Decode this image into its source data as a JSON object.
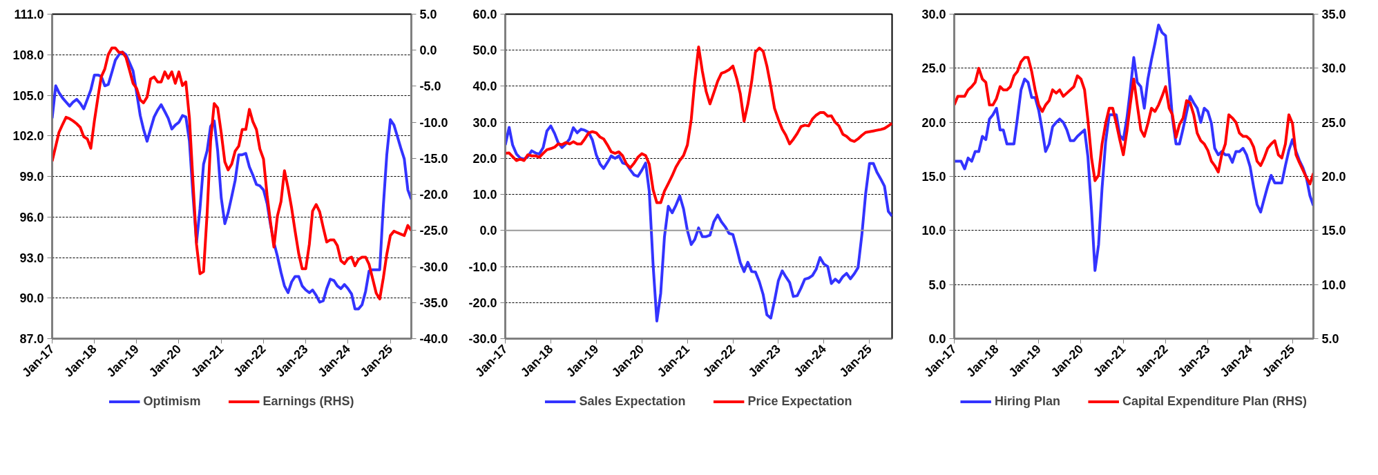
{
  "chart_data": [
    {
      "type": "line",
      "grid": "y",
      "legend": "bottom",
      "xlim": [
        "2017-01",
        "2025-07"
      ],
      "x": [
        "2017-01",
        "2017-02",
        "2017-03",
        "2017-04",
        "2017-05",
        "2017-06",
        "2017-07",
        "2017-08",
        "2017-09",
        "2017-10",
        "2017-11",
        "2017-12",
        "2018-01",
        "2018-02",
        "2018-03",
        "2018-04",
        "2018-05",
        "2018-06",
        "2018-07",
        "2018-08",
        "2018-09",
        "2018-10",
        "2018-11",
        "2018-12",
        "2019-01",
        "2019-02",
        "2019-03",
        "2019-04",
        "2019-05",
        "2019-06",
        "2019-07",
        "2019-08",
        "2019-09",
        "2019-10",
        "2019-11",
        "2019-12",
        "2020-01",
        "2020-02",
        "2020-03",
        "2020-04",
        "2020-05",
        "2020-06",
        "2020-07",
        "2020-08",
        "2020-09",
        "2020-10",
        "2020-11",
        "2020-12",
        "2021-01",
        "2021-02",
        "2021-03",
        "2021-04",
        "2021-05",
        "2021-06",
        "2021-07",
        "2021-08",
        "2021-09",
        "2021-10",
        "2021-11",
        "2021-12",
        "2022-01",
        "2022-02",
        "2022-03",
        "2022-04",
        "2022-05",
        "2022-06",
        "2022-07",
        "2022-08",
        "2022-09",
        "2022-10",
        "2022-11",
        "2022-12",
        "2023-01",
        "2023-02",
        "2023-03",
        "2023-04",
        "2023-05",
        "2023-06",
        "2023-07",
        "2023-08",
        "2023-09",
        "2023-10",
        "2023-11",
        "2023-12",
        "2024-01",
        "2024-02",
        "2024-03",
        "2024-04",
        "2024-05",
        "2024-06",
        "2024-07",
        "2024-08",
        "2024-09",
        "2024-10",
        "2024-11",
        "2024-12",
        "2025-01",
        "2025-02",
        "2025-03",
        "2025-04",
        "2025-05",
        "2025-06",
        "2025-07"
      ],
      "xticks": [
        {
          "value": "2017-01",
          "label": "Jan-17"
        },
        {
          "value": "2018-01",
          "label": "Jan-18"
        },
        {
          "value": "2019-01",
          "label": "Jan-19"
        },
        {
          "value": "2020-01",
          "label": "Jan-20"
        },
        {
          "value": "2021-01",
          "label": "Jan-21"
        },
        {
          "value": "2022-01",
          "label": "Jan-22"
        },
        {
          "value": "2023-01",
          "label": "Jan-23"
        },
        {
          "value": "2024-01",
          "label": "Jan-24"
        },
        {
          "value": "2025-01",
          "label": "Jan-25"
        }
      ],
      "ylim": [
        87,
        111
      ],
      "yticks": [
        {
          "value": 87,
          "label": "87.0"
        },
        {
          "value": 90,
          "label": "90.0"
        },
        {
          "value": 93,
          "label": "93.0"
        },
        {
          "value": 96,
          "label": "96.0"
        },
        {
          "value": 99,
          "label": "99.0"
        },
        {
          "value": 102,
          "label": "102.0"
        },
        {
          "value": 105,
          "label": "105.0"
        },
        {
          "value": 108,
          "label": "108.0"
        },
        {
          "value": 111,
          "label": "111.0"
        }
      ],
      "y2lim": [
        -40,
        5
      ],
      "y2ticks": [
        {
          "value": -40,
          "label": "-40.0"
        },
        {
          "value": -35,
          "label": "-35.0"
        },
        {
          "value": -30,
          "label": "-30.0"
        },
        {
          "value": -25,
          "label": "-25.0"
        },
        {
          "value": -20,
          "label": "-20.0"
        },
        {
          "value": -15,
          "label": "-15.0"
        },
        {
          "value": -10,
          "label": "-10.0"
        },
        {
          "value": -5,
          "label": "-5.0"
        },
        {
          "value": 0,
          "label": "0.0"
        },
        {
          "value": 5,
          "label": "5.0"
        }
      ],
      "series": [
        {
          "name": "Optimism",
          "color": "#3333ff",
          "values": [
            103.3,
            105.7,
            105.2,
            104.8,
            104.5,
            104.2,
            104.5,
            104.7,
            104.4,
            104.0,
            104.7,
            105.4,
            106.5,
            106.5,
            106.4,
            105.7,
            105.8,
            106.7,
            107.6,
            108.0,
            108.2,
            108.0,
            107.4,
            106.8,
            105.2,
            103.5,
            102.5,
            101.6,
            102.5,
            103.4,
            103.9,
            104.3,
            103.8,
            103.3,
            102.5,
            102.8,
            103.0,
            103.5,
            103.4,
            101.6,
            97.7,
            94.1,
            96.6,
            99.9,
            100.9,
            102.7,
            103.1,
            100.9,
            97.4,
            95.5,
            96.3,
            97.5,
            98.7,
            100.6,
            100.6,
            100.7,
            99.7,
            99.1,
            98.4,
            98.3,
            98.0,
            97.0,
            95.5,
            94.1,
            93.1,
            91.9,
            90.9,
            90.4,
            91.2,
            91.6,
            91.6,
            90.9,
            90.6,
            90.4,
            90.6,
            90.2,
            89.7,
            89.8,
            90.7,
            91.4,
            91.3,
            90.9,
            90.7,
            91.0,
            90.7,
            90.3,
            89.2,
            89.2,
            89.5,
            90.5,
            92.0,
            92.1,
            92.1,
            92.1,
            96.8,
            100.6,
            103.2,
            102.8,
            102.0,
            101.1,
            100.3,
            98.0,
            97.3
          ]
        },
        {
          "name": "Earnings (RHS)",
          "color": "#ff0000",
          "axis": "y2",
          "values": [
            -15.4,
            -13.3,
            -11.4,
            -10.3,
            -9.3,
            -9.5,
            -9.8,
            -10.2,
            -10.7,
            -12.0,
            -12.3,
            -13.6,
            -9.8,
            -6.5,
            -3.7,
            -2.6,
            -0.6,
            0.3,
            0.3,
            -0.3,
            -0.3,
            -1.0,
            -2.8,
            -4.6,
            -5.3,
            -6.9,
            -7.3,
            -6.5,
            -4.0,
            -3.7,
            -4.4,
            -4.4,
            -3.0,
            -3.9,
            -3.0,
            -4.6,
            -3.0,
            -4.9,
            -4.4,
            -9.4,
            -18.0,
            -26.9,
            -31.0,
            -30.7,
            -22.6,
            -12.6,
            -7.4,
            -8.0,
            -11.5,
            -15.5,
            -16.6,
            -15.8,
            -14.0,
            -13.3,
            -11.0,
            -11.0,
            -8.2,
            -9.9,
            -11.0,
            -13.7,
            -15.1,
            -20.1,
            -23.7,
            -27.3,
            -23.0,
            -21.0,
            -16.7,
            -19.1,
            -21.9,
            -25.1,
            -28.2,
            -30.3,
            -30.3,
            -26.9,
            -22.3,
            -21.4,
            -22.4,
            -24.6,
            -26.6,
            -26.3,
            -26.3,
            -27.1,
            -29.2,
            -29.6,
            -28.9,
            -28.7,
            -29.9,
            -29.0,
            -28.7,
            -28.7,
            -29.7,
            -31.7,
            -33.7,
            -34.5,
            -31.6,
            -28.3,
            -25.7,
            -25.1,
            -25.3,
            -25.5,
            -25.7,
            -24.3,
            -25.0
          ]
        }
      ]
    },
    {
      "type": "line",
      "grid": "y",
      "legend": "bottom",
      "xlim": [
        "2017-01",
        "2025-07"
      ],
      "x": [
        "2017-01",
        "2017-02",
        "2017-03",
        "2017-04",
        "2017-05",
        "2017-06",
        "2017-07",
        "2017-08",
        "2017-09",
        "2017-10",
        "2017-11",
        "2017-12",
        "2018-01",
        "2018-02",
        "2018-03",
        "2018-04",
        "2018-05",
        "2018-06",
        "2018-07",
        "2018-08",
        "2018-09",
        "2018-10",
        "2018-11",
        "2018-12",
        "2019-01",
        "2019-02",
        "2019-03",
        "2019-04",
        "2019-05",
        "2019-06",
        "2019-07",
        "2019-08",
        "2019-09",
        "2019-10",
        "2019-11",
        "2019-12",
        "2020-01",
        "2020-02",
        "2020-03",
        "2020-04",
        "2020-05",
        "2020-06",
        "2020-07",
        "2020-08",
        "2020-09",
        "2020-10",
        "2020-11",
        "2020-12",
        "2021-01",
        "2021-02",
        "2021-03",
        "2021-04",
        "2021-05",
        "2021-06",
        "2021-07",
        "2021-08",
        "2021-09",
        "2021-10",
        "2021-11",
        "2021-12",
        "2022-01",
        "2022-02",
        "2022-03",
        "2022-04",
        "2022-05",
        "2022-06",
        "2022-07",
        "2022-08",
        "2022-09",
        "2022-10",
        "2022-11",
        "2022-12",
        "2023-01",
        "2023-02",
        "2023-03",
        "2023-04",
        "2023-05",
        "2023-06",
        "2023-07",
        "2023-08",
        "2023-09",
        "2023-10",
        "2023-11",
        "2023-12",
        "2024-01",
        "2024-02",
        "2024-03",
        "2024-04",
        "2024-05",
        "2024-06",
        "2024-07",
        "2024-08",
        "2024-09",
        "2024-10",
        "2024-11",
        "2024-12",
        "2025-01",
        "2025-02",
        "2025-03",
        "2025-04",
        "2025-05",
        "2025-06",
        "2025-07"
      ],
      "xticks": [
        {
          "value": "2017-01",
          "label": "Jan-17"
        },
        {
          "value": "2018-01",
          "label": "Jan-18"
        },
        {
          "value": "2019-01",
          "label": "Jan-19"
        },
        {
          "value": "2020-01",
          "label": "Jan-20"
        },
        {
          "value": "2021-01",
          "label": "Jan-21"
        },
        {
          "value": "2022-01",
          "label": "Jan-22"
        },
        {
          "value": "2023-01",
          "label": "Jan-23"
        },
        {
          "value": "2024-01",
          "label": "Jan-24"
        },
        {
          "value": "2025-01",
          "label": "Jan-25"
        }
      ],
      "ylim": [
        -30,
        60
      ],
      "yticks": [
        {
          "value": -30,
          "label": "-30.0"
        },
        {
          "value": -20,
          "label": "-20.0"
        },
        {
          "value": -10,
          "label": "-10.0"
        },
        {
          "value": 0,
          "label": "0.0"
        },
        {
          "value": 10,
          "label": "10.0"
        },
        {
          "value": 20,
          "label": "20.0"
        },
        {
          "value": 30,
          "label": "30.0"
        },
        {
          "value": 40,
          "label": "40.0"
        },
        {
          "value": 50,
          "label": "50.0"
        },
        {
          "value": 60,
          "label": "60.0"
        }
      ],
      "ref_lines": [
        {
          "axis": "y",
          "value": 0,
          "color": "#999999",
          "line_style": "solid"
        }
      ],
      "series": [
        {
          "name": "Sales Expectation",
          "color": "#3333ff",
          "values": [
            23.7,
            28.6,
            23.7,
            21.2,
            20.1,
            19.8,
            20.5,
            22.1,
            21.5,
            21.2,
            23.0,
            27.6,
            29.0,
            26.9,
            24.4,
            23.0,
            24.0,
            25.4,
            28.5,
            27.1,
            28.1,
            27.8,
            27.2,
            25.1,
            21.0,
            18.4,
            17.2,
            18.9,
            20.7,
            20.0,
            20.7,
            18.7,
            18.4,
            16.8,
            15.4,
            15.0,
            16.7,
            18.7,
            10.9,
            -9.6,
            -25.1,
            -17.4,
            -1.8,
            6.7,
            4.9,
            7.0,
            9.6,
            6.0,
            0.0,
            -3.9,
            -2.5,
            0.7,
            -1.7,
            -1.7,
            -1.3,
            2.4,
            4.3,
            2.4,
            1.0,
            -0.8,
            -1.1,
            -5.0,
            -8.9,
            -11.4,
            -8.8,
            -11.4,
            -11.5,
            -14.2,
            -17.8,
            -23.4,
            -24.3,
            -19.5,
            -13.9,
            -11.2,
            -12.8,
            -14.4,
            -18.3,
            -18.1,
            -16.0,
            -13.5,
            -13.2,
            -12.5,
            -10.7,
            -7.5,
            -9.3,
            -10.0,
            -14.7,
            -13.5,
            -14.4,
            -12.8,
            -11.9,
            -13.4,
            -12.0,
            -10.3,
            -1.1,
            10.2,
            18.6,
            18.6,
            16.2,
            14.3,
            12.3,
            5.3,
            4.0
          ]
        },
        {
          "name": "Price Expectation",
          "color": "#ff0000",
          "values": [
            21.4,
            21.5,
            20.5,
            19.4,
            19.8,
            19.4,
            21.0,
            20.7,
            20.7,
            20.3,
            21.4,
            22.4,
            22.7,
            23.1,
            24.0,
            23.8,
            24.4,
            24.0,
            24.6,
            24.0,
            24.0,
            25.4,
            27.1,
            27.4,
            27.1,
            25.9,
            25.4,
            23.7,
            21.8,
            21.4,
            21.8,
            20.7,
            18.4,
            17.4,
            18.7,
            20.3,
            21.3,
            20.8,
            18.4,
            11.3,
            7.7,
            7.7,
            10.9,
            13.0,
            15.2,
            17.6,
            19.4,
            20.8,
            23.7,
            30.8,
            41.4,
            50.9,
            44.2,
            38.5,
            35.1,
            38.2,
            41.4,
            43.6,
            44.0,
            44.6,
            45.6,
            42.1,
            38.0,
            30.3,
            35.0,
            41.4,
            49.5,
            50.6,
            49.7,
            45.6,
            40.0,
            33.9,
            30.8,
            28.1,
            26.5,
            24.0,
            25.3,
            26.9,
            28.8,
            29.2,
            29.0,
            30.9,
            32.0,
            32.7,
            32.7,
            31.7,
            31.8,
            30.0,
            29.0,
            26.7,
            26.1,
            25.1,
            24.7,
            25.4,
            26.4,
            27.2,
            27.4,
            27.6,
            27.8,
            28.0,
            28.3,
            29.0,
            29.7
          ]
        }
      ]
    },
    {
      "type": "line",
      "grid": "y",
      "legend": "bottom",
      "xlim": [
        "2017-01",
        "2025-07"
      ],
      "x": [
        "2017-01",
        "2017-02",
        "2017-03",
        "2017-04",
        "2017-05",
        "2017-06",
        "2017-07",
        "2017-08",
        "2017-09",
        "2017-10",
        "2017-11",
        "2017-12",
        "2018-01",
        "2018-02",
        "2018-03",
        "2018-04",
        "2018-05",
        "2018-06",
        "2018-07",
        "2018-08",
        "2018-09",
        "2018-10",
        "2018-11",
        "2018-12",
        "2019-01",
        "2019-02",
        "2019-03",
        "2019-04",
        "2019-05",
        "2019-06",
        "2019-07",
        "2019-08",
        "2019-09",
        "2019-10",
        "2019-11",
        "2019-12",
        "2020-01",
        "2020-02",
        "2020-03",
        "2020-04",
        "2020-05",
        "2020-06",
        "2020-07",
        "2020-08",
        "2020-09",
        "2020-10",
        "2020-11",
        "2020-12",
        "2021-01",
        "2021-02",
        "2021-03",
        "2021-04",
        "2021-05",
        "2021-06",
        "2021-07",
        "2021-08",
        "2021-09",
        "2021-10",
        "2021-11",
        "2021-12",
        "2022-01",
        "2022-02",
        "2022-03",
        "2022-04",
        "2022-05",
        "2022-06",
        "2022-07",
        "2022-08",
        "2022-09",
        "2022-10",
        "2022-11",
        "2022-12",
        "2023-01",
        "2023-02",
        "2023-03",
        "2023-04",
        "2023-05",
        "2023-06",
        "2023-07",
        "2023-08",
        "2023-09",
        "2023-10",
        "2023-11",
        "2023-12",
        "2024-01",
        "2024-02",
        "2024-03",
        "2024-04",
        "2024-05",
        "2024-06",
        "2024-07",
        "2024-08",
        "2024-09",
        "2024-10",
        "2024-11",
        "2024-12",
        "2025-01",
        "2025-02",
        "2025-03",
        "2025-04",
        "2025-05",
        "2025-06",
        "2025-07"
      ],
      "xticks": [
        {
          "value": "2017-01",
          "label": "Jan-17"
        },
        {
          "value": "2018-01",
          "label": "Jan-18"
        },
        {
          "value": "2019-01",
          "label": "Jan-19"
        },
        {
          "value": "2020-01",
          "label": "Jan-20"
        },
        {
          "value": "2021-01",
          "label": "Jan-21"
        },
        {
          "value": "2022-01",
          "label": "Jan-22"
        },
        {
          "value": "2023-01",
          "label": "Jan-23"
        },
        {
          "value": "2024-01",
          "label": "Jan-24"
        },
        {
          "value": "2025-01",
          "label": "Jan-25"
        }
      ],
      "ylim": [
        0,
        30
      ],
      "yticks": [
        {
          "value": 0,
          "label": "0.0"
        },
        {
          "value": 5,
          "label": "5.0"
        },
        {
          "value": 10,
          "label": "10.0"
        },
        {
          "value": 15,
          "label": "15.0"
        },
        {
          "value": 20,
          "label": "20.0"
        },
        {
          "value": 25,
          "label": "25.0"
        },
        {
          "value": 30,
          "label": "30.0"
        }
      ],
      "y2lim": [
        5,
        35
      ],
      "y2ticks": [
        {
          "value": 5,
          "label": "5.0"
        },
        {
          "value": 10,
          "label": "10.0"
        },
        {
          "value": 15,
          "label": "15.0"
        },
        {
          "value": 20,
          "label": "20.0"
        },
        {
          "value": 25,
          "label": "25.0"
        },
        {
          "value": 30,
          "label": "30.0"
        },
        {
          "value": 35,
          "label": "35.0"
        }
      ],
      "series": [
        {
          "name": "Hiring Plan",
          "color": "#3333ff",
          "values": [
            16.4,
            16.4,
            16.4,
            15.7,
            16.7,
            16.4,
            17.3,
            17.3,
            18.7,
            18.4,
            20.3,
            20.7,
            21.3,
            19.3,
            19.3,
            18.0,
            18.0,
            18.0,
            20.4,
            23.0,
            24.0,
            23.7,
            22.3,
            22.3,
            21.1,
            19.2,
            17.3,
            18.0,
            19.6,
            20.0,
            20.3,
            20.0,
            19.3,
            18.3,
            18.3,
            18.7,
            19.0,
            19.3,
            16.8,
            11.9,
            6.3,
            8.7,
            13.9,
            18.2,
            20.7,
            20.7,
            20.7,
            18.8,
            18.4,
            20.4,
            22.9,
            26.0,
            23.7,
            23.3,
            21.3,
            24.0,
            25.8,
            27.3,
            29.0,
            28.3,
            28.0,
            24.1,
            20.4,
            18.0,
            18.0,
            19.4,
            20.9,
            22.4,
            21.8,
            21.3,
            20.0,
            21.3,
            21.0,
            19.9,
            17.6,
            17.0,
            17.3,
            17.0,
            17.0,
            16.3,
            17.3,
            17.3,
            17.6,
            17.0,
            15.9,
            14.0,
            12.4,
            11.7,
            12.9,
            14.1,
            15.1,
            14.4,
            14.4,
            14.4,
            16.0,
            17.4,
            18.4,
            17.3,
            16.5,
            15.8,
            14.9,
            13.2,
            12.3
          ]
        },
        {
          "name": "Capital Expenditure Plan (RHS)",
          "color": "#ff0000",
          "axis": "y2",
          "values": [
            26.6,
            27.4,
            27.4,
            27.4,
            28.0,
            28.3,
            28.7,
            30.0,
            29.0,
            28.7,
            26.6,
            26.6,
            27.2,
            28.3,
            28.0,
            28.0,
            28.3,
            29.3,
            29.7,
            30.6,
            31.0,
            31.0,
            29.7,
            28.0,
            26.6,
            26.0,
            26.6,
            27.0,
            28.0,
            27.7,
            28.0,
            27.4,
            27.7,
            28.0,
            28.3,
            29.3,
            29.0,
            28.0,
            25.2,
            21.7,
            19.6,
            20.1,
            23.0,
            24.9,
            26.3,
            26.3,
            24.9,
            23.4,
            22.0,
            24.2,
            26.6,
            29.0,
            26.6,
            24.3,
            23.7,
            24.9,
            26.3,
            26.0,
            26.6,
            27.4,
            28.3,
            26.3,
            25.7,
            23.6,
            24.8,
            25.4,
            27.0,
            26.8,
            25.7,
            24.0,
            23.3,
            23.0,
            22.4,
            21.4,
            21.0,
            20.4,
            22.0,
            23.0,
            25.7,
            25.4,
            25.0,
            24.0,
            23.7,
            23.7,
            23.4,
            22.7,
            21.4,
            21.0,
            21.7,
            22.6,
            23.0,
            23.3,
            22.0,
            21.7,
            23.0,
            25.7,
            24.9,
            22.0,
            21.3,
            20.6,
            19.9,
            19.3,
            20.3
          ]
        }
      ]
    }
  ]
}
